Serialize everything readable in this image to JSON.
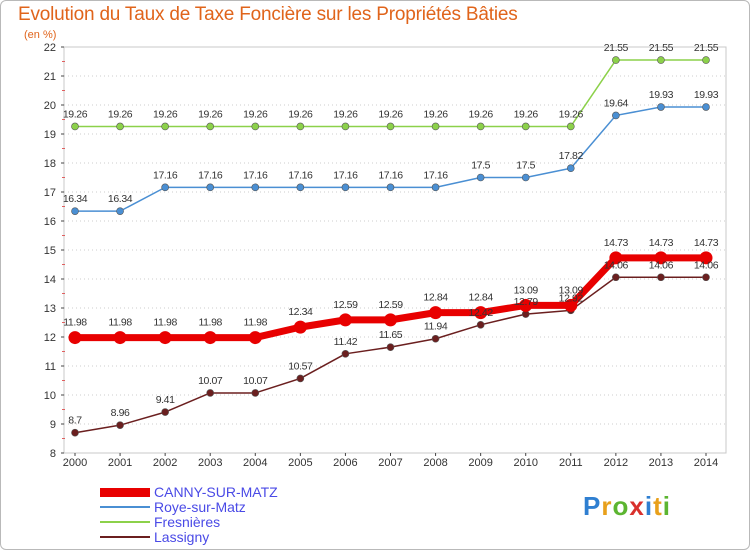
{
  "chart_data": {
    "type": "line",
    "title": "Evolution du Taux de Taxe Foncière sur les Propriétés Bâties",
    "subtitle": "(en %)",
    "x": [
      "2000",
      "2001",
      "2002",
      "2003",
      "2004",
      "2005",
      "2006",
      "2007",
      "2008",
      "2009",
      "2010",
      "2011",
      "2012",
      "2013",
      "2014"
    ],
    "ylim": [
      8,
      22
    ],
    "yticks": [
      "8",
      "9",
      "10",
      "11",
      "12",
      "13",
      "14",
      "15",
      "16",
      "17",
      "18",
      "19",
      "20",
      "21",
      "22"
    ],
    "grid": "horizontal dotted",
    "legend_placement": "bottom-left",
    "series": [
      {
        "name": "CANNY-SUR-MATZ",
        "color": "#e80000",
        "values": [
          11.98,
          11.98,
          11.98,
          11.98,
          11.98,
          12.34,
          12.59,
          12.59,
          12.84,
          12.84,
          13.09,
          13.09,
          14.73,
          14.73,
          14.73
        ],
        "labels": [
          "11.98",
          "11.98",
          "11.98",
          "11.98",
          "11.98",
          "12.34",
          "12.59",
          "12.59",
          "12.84",
          "12.84",
          "13.09",
          "13.09",
          "14.73",
          "14.73",
          "14.73"
        ]
      },
      {
        "name": "Roye-sur-Matz",
        "color": "#4a8fd3",
        "values": [
          16.34,
          16.34,
          17.16,
          17.16,
          17.16,
          17.16,
          17.16,
          17.16,
          17.16,
          17.5,
          17.5,
          17.82,
          19.64,
          19.93,
          19.93
        ],
        "labels": [
          "16.34",
          "16.34",
          "17.16",
          "17.16",
          "17.16",
          "17.16",
          "17.16",
          "17.16",
          "17.16",
          "17.5",
          "17.5",
          "17.82",
          "19.64",
          "19.93",
          "19.93"
        ]
      },
      {
        "name": "Fresnières",
        "color": "#8cd14a",
        "values": [
          19.26,
          19.26,
          19.26,
          19.26,
          19.26,
          19.26,
          19.26,
          19.26,
          19.26,
          19.26,
          19.26,
          19.26,
          21.55,
          21.55,
          21.55
        ],
        "labels": [
          "19.26",
          "19.26",
          "19.26",
          "19.26",
          "19.26",
          "19.26",
          "19.26",
          "19.26",
          "19.26",
          "19.26",
          "19.26",
          "19.26",
          "21.55",
          "21.55",
          "21.55"
        ]
      },
      {
        "name": "Lassigny",
        "color": "#6b1f1f",
        "values": [
          8.7,
          8.96,
          9.41,
          10.07,
          10.07,
          10.57,
          11.42,
          11.65,
          11.94,
          12.42,
          12.79,
          12.92,
          14.06,
          14.06,
          14.06
        ],
        "labels": [
          "8.7",
          "8.96",
          "9.41",
          "10.07",
          "10.07",
          "10.57",
          "11.42",
          "11.65",
          "11.94",
          "12.42",
          "12.79",
          "12.92",
          "14.06",
          "14.06",
          "14.06"
        ]
      }
    ]
  },
  "logo": {
    "p": "P",
    "r": "r",
    "o": "o",
    "x": "x",
    "i": "i",
    "t": "t",
    "i2": "i"
  }
}
